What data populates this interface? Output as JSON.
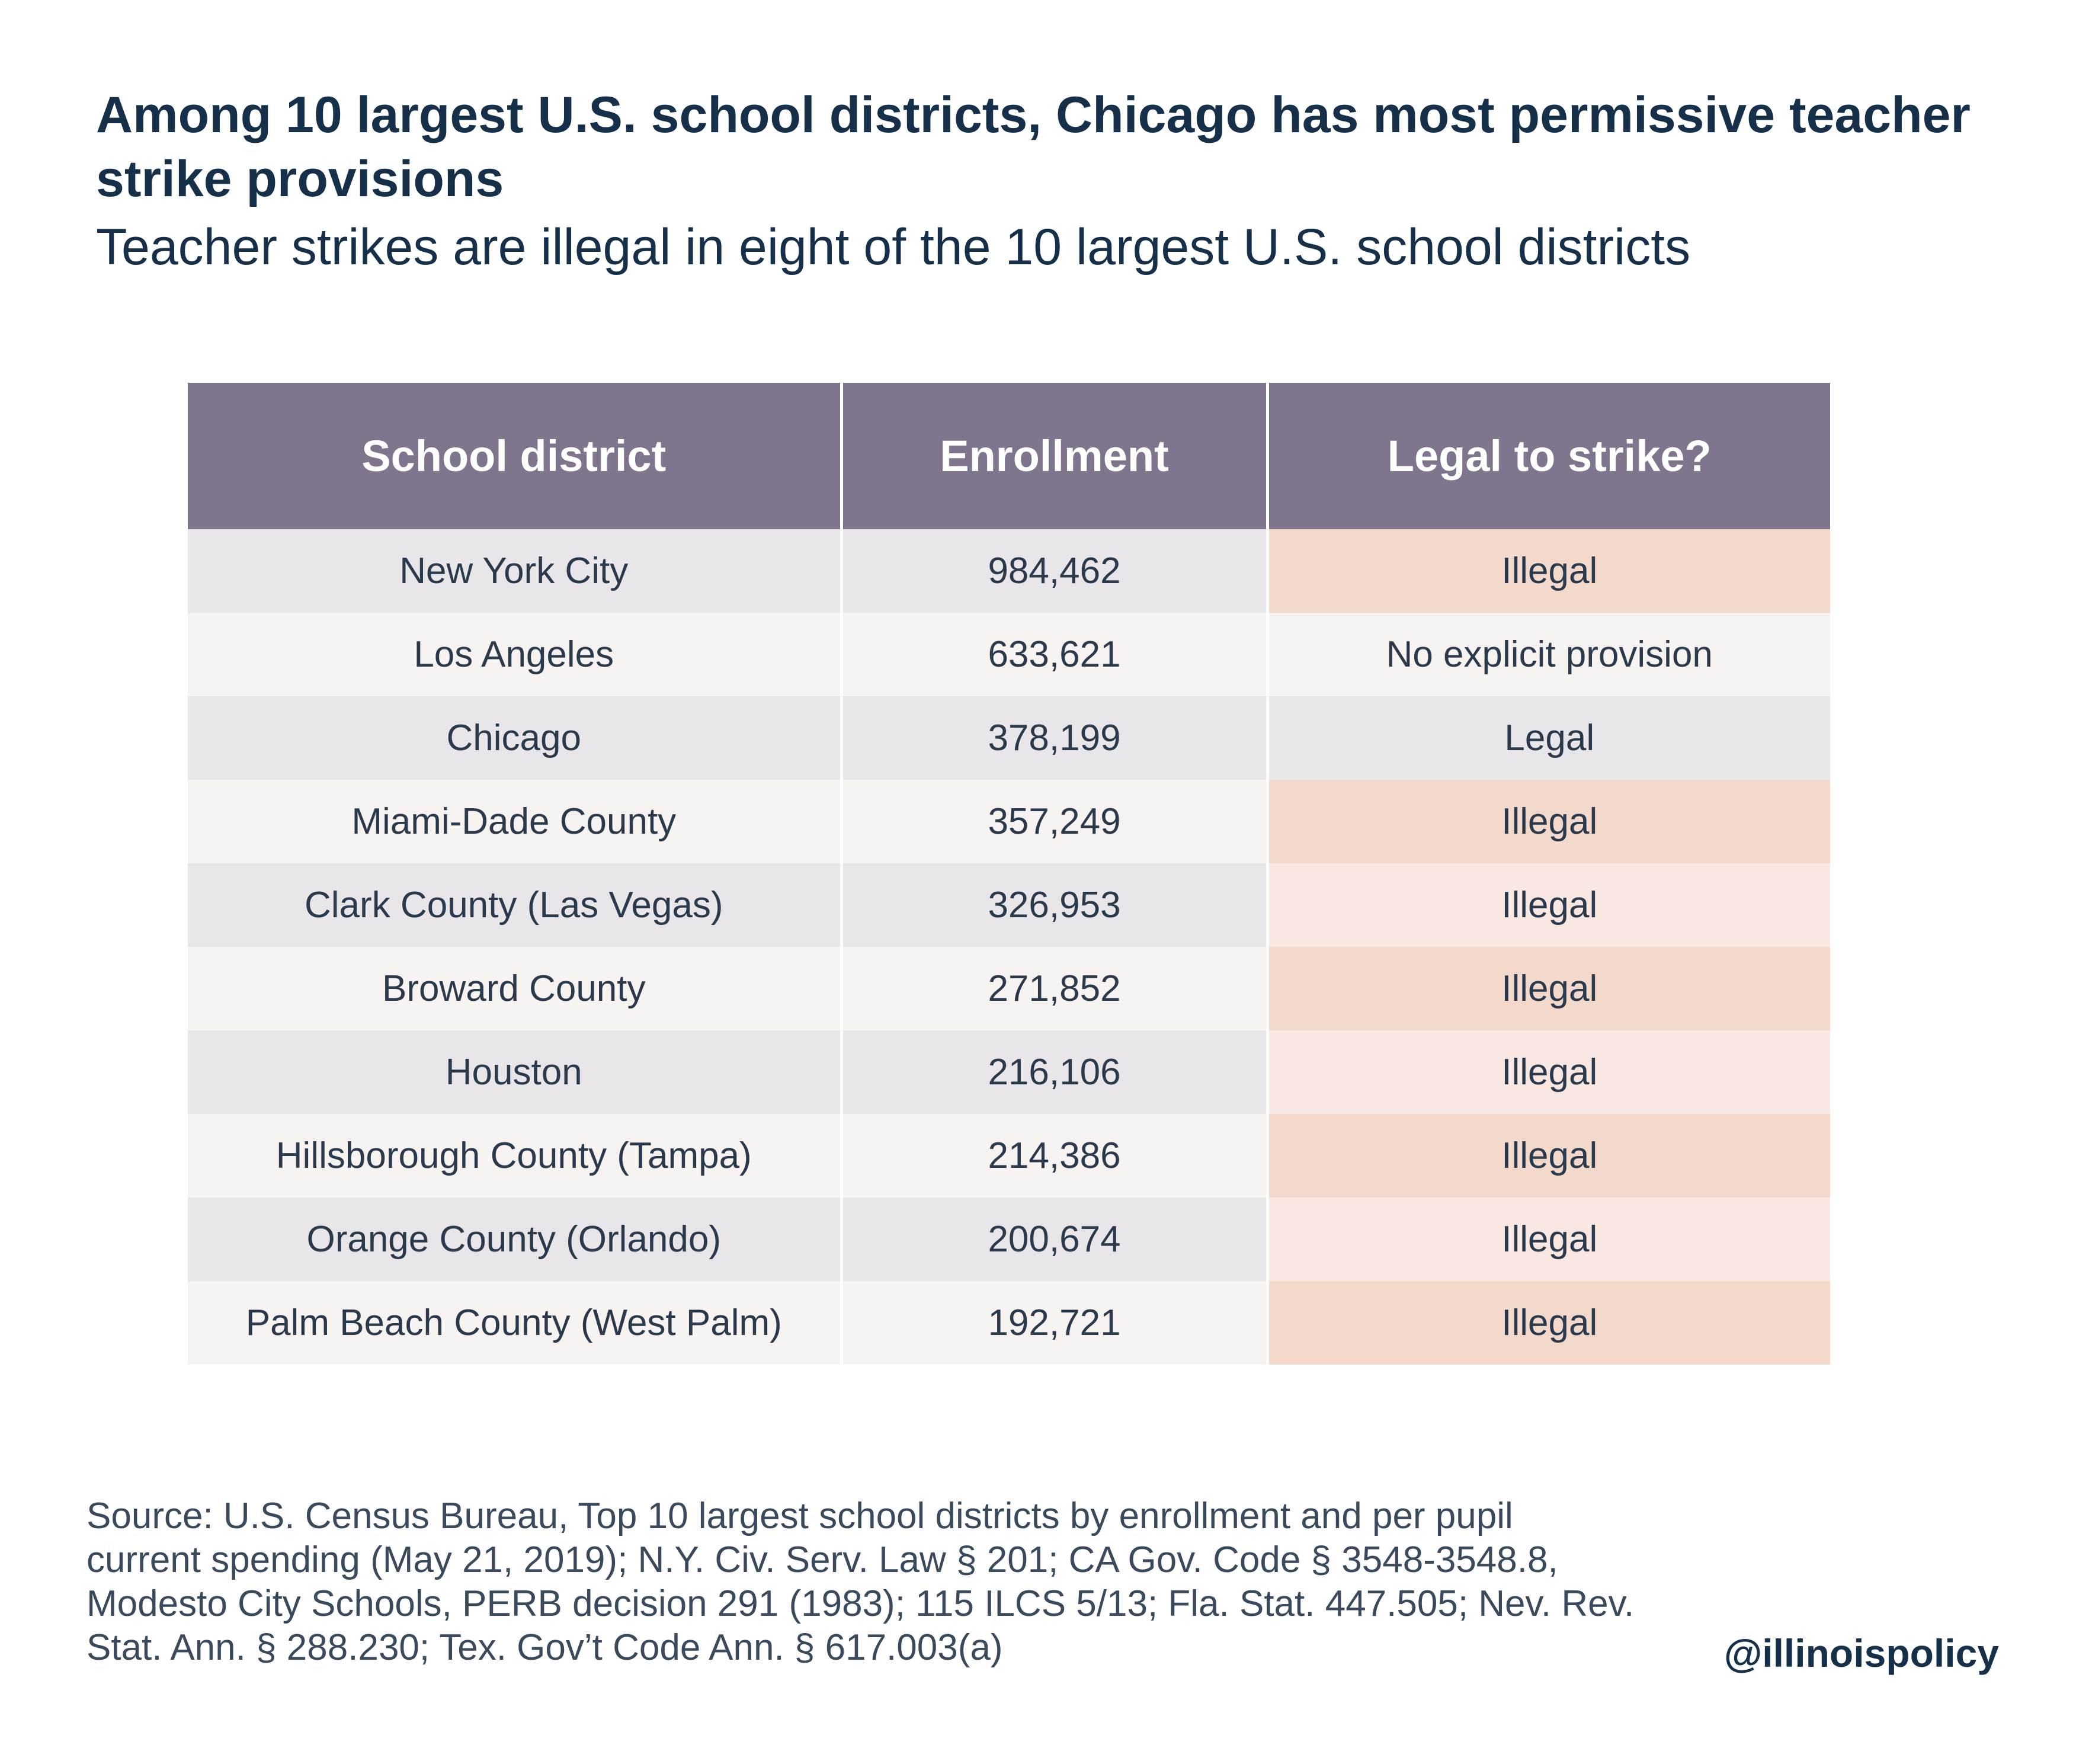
{
  "title": "Among 10 largest U.S. school districts, Chicago has most permissive teacher strike provisions",
  "subtitle": "Teacher strikes are illegal in eight of the 10 largest U.S. school districts",
  "colors": {
    "header_bg": "#7f758c",
    "title_text": "#16304a",
    "row_gray": "#e8e6e8",
    "row_light": "#f6f3f1",
    "illegal_strong": "#f3d9cc",
    "illegal_light": "#f8e8e1"
  },
  "chart_data": {
    "type": "table",
    "columns": [
      "School district",
      "Enrollment",
      "Legal to strike?"
    ],
    "rows": [
      {
        "district": "New York City",
        "enrollment": "984,462",
        "status": "Illegal",
        "tone": "illegal-strong"
      },
      {
        "district": "Los Angeles",
        "enrollment": "633,621",
        "status": "No explicit provision",
        "tone": "neutral"
      },
      {
        "district": "Chicago",
        "enrollment": "378,199",
        "status": "Legal",
        "tone": "neutral"
      },
      {
        "district": "Miami-Dade County",
        "enrollment": "357,249",
        "status": "Illegal",
        "tone": "illegal-strong"
      },
      {
        "district": "Clark County (Las Vegas)",
        "enrollment": "326,953",
        "status": "Illegal",
        "tone": "illegal-light"
      },
      {
        "district": "Broward County",
        "enrollment": "271,852",
        "status": "Illegal",
        "tone": "illegal-strong"
      },
      {
        "district": "Houston",
        "enrollment": "216,106",
        "status": "Illegal",
        "tone": "illegal-light"
      },
      {
        "district": "Hillsborough County (Tampa)",
        "enrollment": "214,386",
        "status": "Illegal",
        "tone": "illegal-strong"
      },
      {
        "district": "Orange County (Orlando)",
        "enrollment": "200,674",
        "status": "Illegal",
        "tone": "illegal-light"
      },
      {
        "district": "Palm Beach County (West Palm)",
        "enrollment": "192,721",
        "status": "Illegal",
        "tone": "illegal-strong"
      }
    ]
  },
  "source_lines": [
    "Source: U.S. Census Bureau, Top 10 largest school districts by enrollment and per pupil",
    "current spending (May 21, 2019); N.Y. Civ. Serv. Law § 201; CA Gov. Code § 3548-3548.8,",
    "Modesto City Schools, PERB decision 291 (1983); 115 ILCS 5/13; Fla. Stat. 447.505; Nev. Rev.",
    "Stat. Ann. § 288.230; Tex. Gov’t Code Ann. § 617.003(a)"
  ],
  "handle": "@illinoispolicy"
}
